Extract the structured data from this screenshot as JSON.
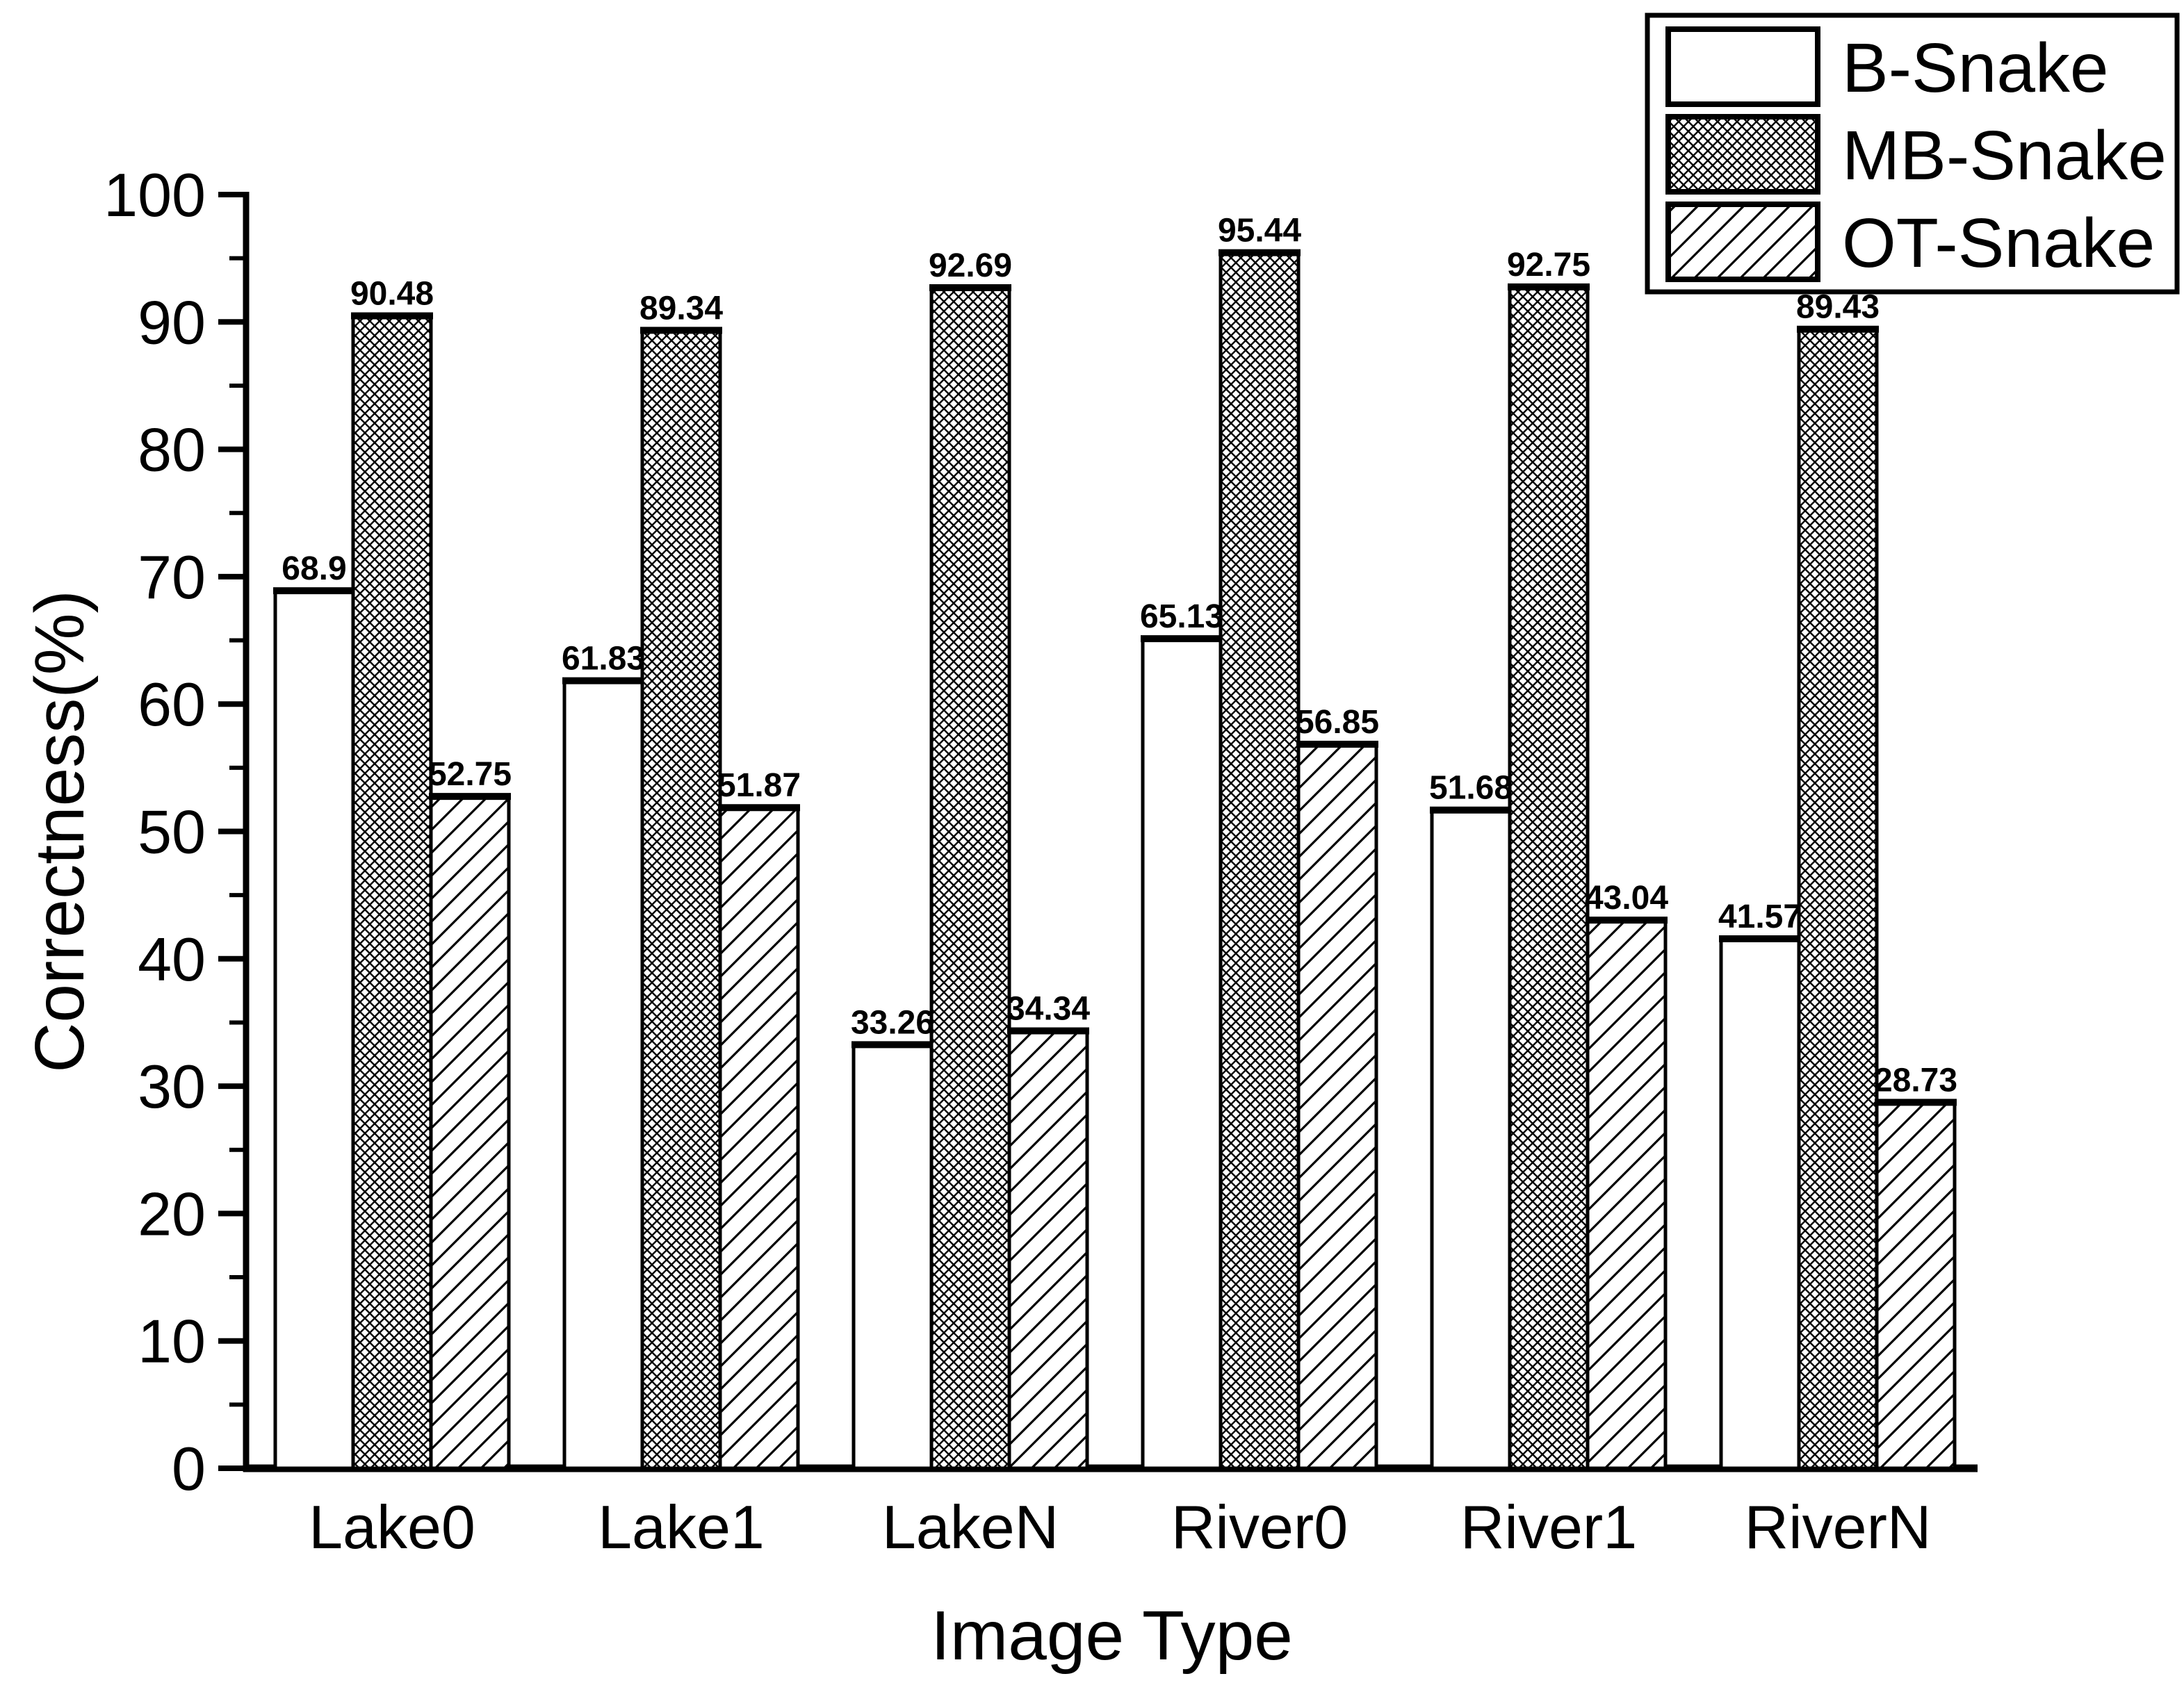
{
  "chart_data": {
    "type": "bar",
    "title": "",
    "xlabel": "Image Type",
    "ylabel": "Correctness(%)",
    "categories": [
      "Lake0",
      "Lake1",
      "LakeN",
      "River0",
      "River1",
      "RiverN"
    ],
    "series": [
      {
        "name": "B-Snake",
        "pattern": "solid-white",
        "values": [
          68.9,
          61.83,
          33.26,
          65.13,
          51.68,
          41.57
        ]
      },
      {
        "name": "MB-Snake",
        "pattern": "crosshatch",
        "values": [
          90.48,
          89.34,
          92.69,
          95.44,
          92.75,
          89.43
        ]
      },
      {
        "name": "OT-Snake",
        "pattern": "diagonal",
        "values": [
          52.75,
          51.87,
          34.34,
          56.85,
          43.04,
          28.73
        ]
      }
    ],
    "value_labels": [
      [
        "68.9",
        "61.83",
        "33.26",
        "65.13",
        "51.68",
        "41.57"
      ],
      [
        "90.48",
        "89.34",
        "92.69",
        "95.44",
        "92.75",
        "89.43"
      ],
      [
        "52.75",
        "51.87",
        "34.34",
        "56.85",
        "43.04",
        "28.73"
      ]
    ],
    "ylim": [
      0,
      100
    ],
    "y_major_ticks": [
      "0",
      "10",
      "20",
      "30",
      "40",
      "50",
      "60",
      "70",
      "80",
      "90",
      "100"
    ],
    "y_minor_step": 5,
    "legend_position": "top-right",
    "legend_labels": [
      "B-Snake",
      "MB-Snake",
      "OT-Snake"
    ],
    "grid": false,
    "colors": {
      "foreground": "#000000",
      "background": "#ffffff",
      "bar_fill": "#ffffff"
    }
  }
}
